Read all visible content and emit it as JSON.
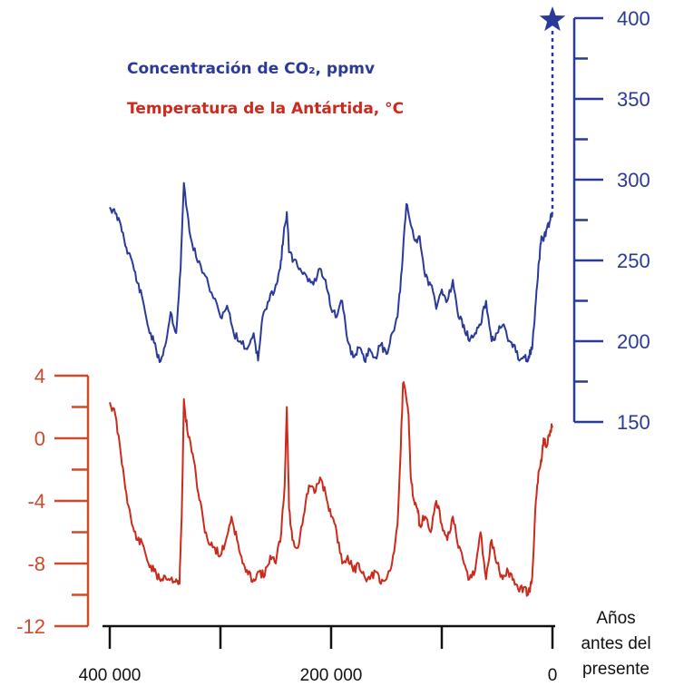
{
  "chart_data": {
    "type": "line",
    "legend": {
      "co2_label": "Concentración de CO₂, ppmv",
      "temperature_label": "Temperatura de la Antártida, °C"
    },
    "colors": {
      "co2": "#2b3a98",
      "temperature": "#cc2a1c",
      "temperature_axis": "#d04a2a",
      "x_axis": "#111111"
    },
    "x_axis": {
      "label_lines": [
        "Años",
        "antes del",
        "presente"
      ],
      "range": [
        400000,
        0
      ],
      "ticks": [
        400000,
        300000,
        200000,
        100000,
        0
      ],
      "tick_labels": [
        {
          "value": 400000,
          "label": "400 000"
        },
        {
          "value": 200000,
          "label": "200 000"
        },
        {
          "value": 0,
          "label": "0"
        }
      ]
    },
    "co2_axis": {
      "position": "right",
      "range": [
        150,
        400
      ],
      "major_ticks": [
        150,
        200,
        250,
        300,
        350,
        400
      ],
      "minor_ticks": [
        175,
        225,
        275,
        325,
        375
      ]
    },
    "temperature_axis": {
      "position": "left",
      "range": [
        -12,
        4
      ],
      "major_ticks": [
        -12,
        -8,
        -4,
        0,
        4
      ],
      "minor_ticks": [
        -10,
        -6,
        -2,
        2
      ]
    },
    "series": [
      {
        "key": "co2",
        "axis": "co2",
        "x": [
          400000,
          395000,
          390000,
          385000,
          380000,
          375000,
          370000,
          365000,
          360000,
          355000,
          350000,
          345000,
          340000,
          336000,
          333000,
          328000,
          322000,
          315000,
          308000,
          300000,
          294000,
          288000,
          282000,
          276000,
          270000,
          266000,
          262000,
          256000,
          250000,
          246000,
          243000,
          240000,
          238000,
          234000,
          228000,
          222000,
          216000,
          210000,
          205000,
          200000,
          195000,
          190000,
          185000,
          180000,
          175000,
          170000,
          165000,
          160000,
          155000,
          150000,
          145000,
          140000,
          136000,
          132000,
          128000,
          124000,
          120000,
          115000,
          110000,
          105000,
          100000,
          95000,
          90000,
          85000,
          80000,
          75000,
          70000,
          65000,
          60000,
          55000,
          50000,
          45000,
          40000,
          35000,
          30000,
          25000,
          22000,
          20000,
          18000,
          15000,
          12000,
          10000,
          8000,
          5000,
          2000,
          0
        ],
        "y": [
          283,
          279,
          272,
          258,
          250,
          236,
          225,
          208,
          199,
          187,
          197,
          218,
          205,
          245,
          298,
          268,
          252,
          242,
          230,
          215,
          222,
          205,
          200,
          195,
          205,
          188,
          215,
          225,
          235,
          245,
          265,
          280,
          255,
          250,
          245,
          240,
          235,
          245,
          238,
          220,
          215,
          225,
          200,
          190,
          196,
          188,
          195,
          190,
          198,
          192,
          205,
          215,
          245,
          285,
          272,
          262,
          265,
          240,
          235,
          220,
          232,
          225,
          238,
          215,
          210,
          200,
          205,
          210,
          225,
          200,
          205,
          210,
          200,
          198,
          188,
          190,
          188,
          193,
          198,
          225,
          250,
          265,
          262,
          270,
          275,
          280
        ]
      },
      {
        "key": "temperature",
        "axis": "temperature",
        "x": [
          400000,
          395000,
          390000,
          385000,
          380000,
          375000,
          370000,
          365000,
          360000,
          355000,
          350000,
          345000,
          340000,
          337000,
          335000,
          333000,
          330000,
          325000,
          320000,
          315000,
          310000,
          305000,
          300000,
          295000,
          290000,
          285000,
          280000,
          275000,
          270000,
          265000,
          260000,
          255000,
          250000,
          245000,
          242000,
          240000,
          238000,
          235000,
          230000,
          225000,
          220000,
          215000,
          210000,
          205000,
          200000,
          195000,
          190000,
          185000,
          180000,
          175000,
          170000,
          165000,
          160000,
          155000,
          150000,
          145000,
          140000,
          137000,
          135000,
          132000,
          130000,
          128000,
          125000,
          122000,
          120000,
          115000,
          110000,
          105000,
          100000,
          95000,
          90000,
          85000,
          80000,
          75000,
          70000,
          65000,
          60000,
          55000,
          50000,
          45000,
          40000,
          35000,
          30000,
          25000,
          22000,
          20000,
          18000,
          15000,
          12000,
          10000,
          8000,
          5000,
          2000,
          0
        ],
        "y": [
          2.3,
          1.5,
          -1.0,
          -3.5,
          -5.5,
          -6.5,
          -6.8,
          -8.0,
          -8.5,
          -9.0,
          -8.8,
          -9.0,
          -9.0,
          -9.3,
          -5.0,
          2.5,
          0.5,
          -1.0,
          -3.5,
          -5.5,
          -6.8,
          -7.0,
          -7.5,
          -6.5,
          -5.0,
          -6.5,
          -8.0,
          -8.7,
          -9.0,
          -8.5,
          -8.8,
          -7.5,
          -8.0,
          -6.0,
          -3.0,
          2.0,
          -4.5,
          -6.5,
          -7.0,
          -5.0,
          -3.0,
          -3.5,
          -2.5,
          -3.5,
          -5.0,
          -6.0,
          -8.0,
          -7.5,
          -8.5,
          -8.0,
          -8.8,
          -9.0,
          -8.5,
          -9.3,
          -9.0,
          -8.0,
          -5.5,
          -0.5,
          3.5,
          2.5,
          1.5,
          -2.5,
          -4.0,
          -4.5,
          -5.5,
          -5.0,
          -6.0,
          -4.0,
          -5.5,
          -6.5,
          -5.0,
          -7.0,
          -8.0,
          -9.0,
          -8.5,
          -6.0,
          -9.0,
          -6.5,
          -8.0,
          -9.0,
          -8.5,
          -9.0,
          -9.8,
          -9.5,
          -10.0,
          -9.5,
          -8.5,
          -4.0,
          -2.0,
          -1.5,
          0.0,
          -0.5,
          0.5,
          0.8
        ]
      }
    ],
    "marker": {
      "symbol": "star",
      "x": 0,
      "y": 400,
      "axis": "co2",
      "connector": "dashed"
    }
  }
}
